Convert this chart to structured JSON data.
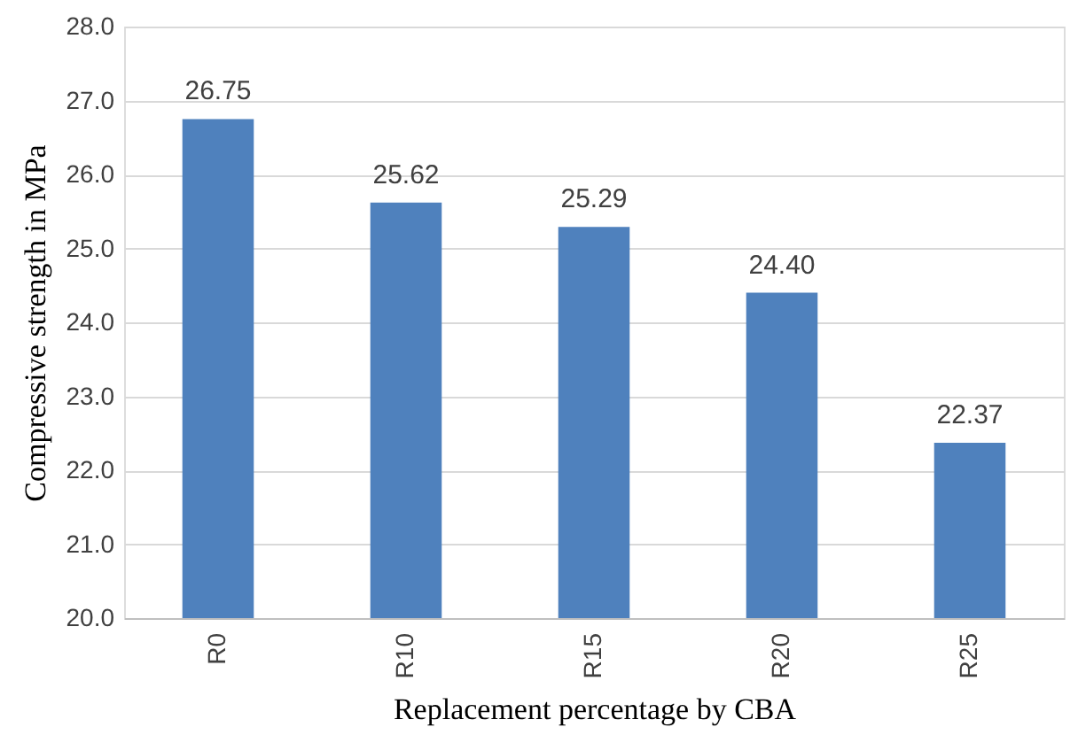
{
  "chart_data": {
    "type": "bar",
    "xlabel": "Replacement percentage by CBA",
    "ylabel": "Compressive strength in MPa",
    "categories": [
      "R0",
      "R10",
      "R15",
      "R20",
      "R25"
    ],
    "values": [
      26.75,
      25.62,
      25.29,
      24.4,
      22.37
    ],
    "value_labels": [
      "26.75",
      "25.62",
      "25.29",
      "24.40",
      "22.37"
    ],
    "color": "#4f81bd",
    "ylim": [
      20,
      28
    ],
    "yticks": [
      {
        "value": 20,
        "label": "20.0"
      },
      {
        "value": 21,
        "label": "21.0"
      },
      {
        "value": 22,
        "label": "22.0"
      },
      {
        "value": 23,
        "label": "23.0"
      },
      {
        "value": 24,
        "label": "24.0"
      },
      {
        "value": 25,
        "label": "25.0"
      },
      {
        "value": 26,
        "label": "26.0"
      },
      {
        "value": 27,
        "label": "27.0"
      },
      {
        "value": 28,
        "label": "28.0"
      }
    ],
    "grid": "y"
  }
}
